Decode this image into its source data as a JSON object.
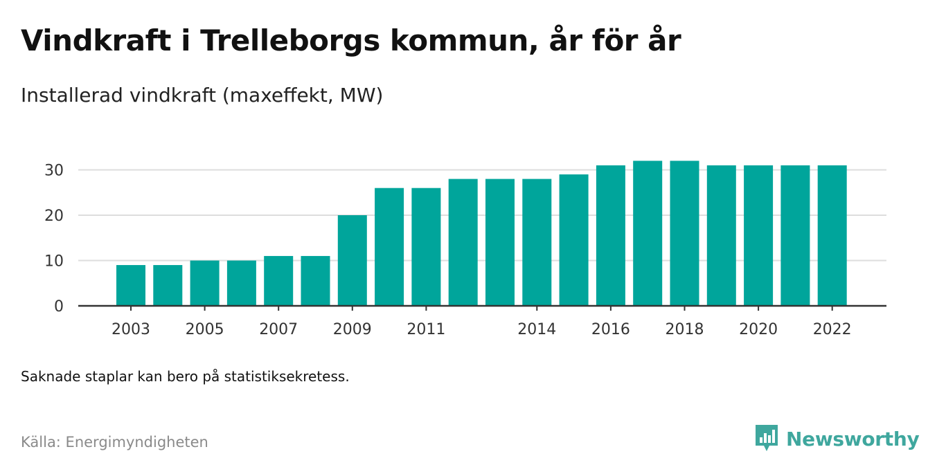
{
  "header": {
    "title": "Vindkraft i Trelleborgs kommun, år för år",
    "subtitle": "Installerad vindkraft (maxeffekt, MW)"
  },
  "footer": {
    "note": "Saknade staplar kan bero på statistiksekretess.",
    "source": "Källa: Energimyndigheten",
    "brand": "Newsworthy"
  },
  "colors": {
    "bar": "#00a59b",
    "brand": "#3fa79e",
    "grid": "#dddddd",
    "axis": "#333333"
  },
  "chart_data": {
    "type": "bar",
    "categories": [
      "2003",
      "2004",
      "2005",
      "2006",
      "2007",
      "2008",
      "2009",
      "2010",
      "2011",
      "2012",
      "2013",
      "2014",
      "2015",
      "2016",
      "2017",
      "2018",
      "2019",
      "2020",
      "2021",
      "2022"
    ],
    "values": [
      9,
      9,
      10,
      10,
      11,
      11,
      20,
      26,
      26,
      28,
      28,
      28,
      29,
      31,
      32,
      32,
      31,
      31,
      31,
      31
    ],
    "x_tick_labels": [
      "2003",
      "2005",
      "2007",
      "2009",
      "2011",
      "2014",
      "2016",
      "2018",
      "2020",
      "2022"
    ],
    "y_ticks": [
      0,
      10,
      20,
      30
    ],
    "ylim": [
      0,
      33
    ],
    "grid": true,
    "title": "Vindkraft i Trelleborgs kommun, år för år",
    "xlabel": "",
    "ylabel": ""
  }
}
